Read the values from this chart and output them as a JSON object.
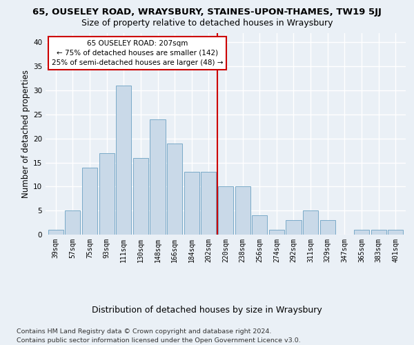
{
  "title1": "65, OUSELEY ROAD, WRAYSBURY, STAINES-UPON-THAMES, TW19 5JJ",
  "title2": "Size of property relative to detached houses in Wraysbury",
  "xlabel": "Distribution of detached houses by size in Wraysbury",
  "ylabel": "Number of detached properties",
  "categories": [
    "39sqm",
    "57sqm",
    "75sqm",
    "93sqm",
    "111sqm",
    "130sqm",
    "148sqm",
    "166sqm",
    "184sqm",
    "202sqm",
    "220sqm",
    "238sqm",
    "256sqm",
    "274sqm",
    "292sqm",
    "311sqm",
    "329sqm",
    "347sqm",
    "365sqm",
    "383sqm",
    "401sqm"
  ],
  "values": [
    1,
    5,
    14,
    17,
    31,
    16,
    24,
    19,
    13,
    13,
    10,
    10,
    4,
    1,
    3,
    5,
    3,
    0,
    1,
    1,
    1
  ],
  "bar_color": "#c9d9e8",
  "bar_edge_color": "#7aaac8",
  "vline_color": "#cc0000",
  "vline_x": 9.5,
  "annotation_title": "65 OUSELEY ROAD: 207sqm",
  "annotation_line1": "← 75% of detached houses are smaller (142)",
  "annotation_line2": "25% of semi-detached houses are larger (48) →",
  "annotation_box_color": "#ffffff",
  "annotation_box_edge": "#cc0000",
  "ylim": [
    0,
    42
  ],
  "yticks": [
    0,
    5,
    10,
    15,
    20,
    25,
    30,
    35,
    40
  ],
  "footer1": "Contains HM Land Registry data © Crown copyright and database right 2024.",
  "footer2": "Contains public sector information licensed under the Open Government Licence v3.0.",
  "bg_color": "#eaf0f6",
  "grid_color": "#ffffff",
  "title1_fontsize": 9.5,
  "title2_fontsize": 9.0,
  "ylabel_fontsize": 8.5,
  "xlabel_fontsize": 9.0,
  "tick_fontsize": 7.0,
  "annot_fontsize": 7.5,
  "footer_fontsize": 6.8
}
